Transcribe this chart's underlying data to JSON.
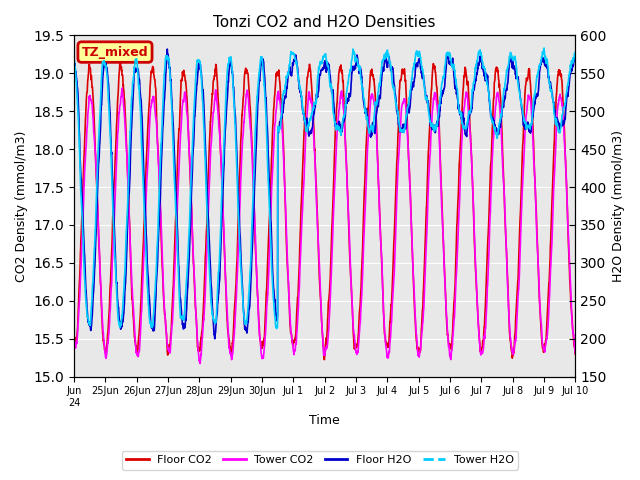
{
  "title": "Tonzi CO2 and H2O Densities",
  "xlabel": "Time",
  "ylabel_left": "CO2 Density (mmol/m3)",
  "ylabel_right": "H2O Density (mmol/m3)",
  "ylim_left": [
    15.0,
    19.5
  ],
  "ylim_right": [
    150,
    600
  ],
  "yticks_left": [
    15.0,
    15.5,
    16.0,
    16.5,
    17.0,
    17.5,
    18.0,
    18.5,
    19.0,
    19.5
  ],
  "yticks_right": [
    150,
    200,
    250,
    300,
    350,
    400,
    450,
    500,
    550,
    600
  ],
  "xtick_labels": [
    "Jun\n24",
    "25Jun",
    "26Jun",
    "27Jun",
    "28Jun",
    "29Jun",
    "30Jun",
    "Jul 1",
    "Jul 2",
    "Jul 3",
    "Jul 4",
    "Jul 5",
    "Jul 6",
    "Jul 7",
    "Jul 8",
    "Jul 9",
    "Jul 10"
  ],
  "annotation_text": "TZ_mixed",
  "annotation_color": "#cc0000",
  "annotation_bg": "#ffff99",
  "floor_co2_color": "#dd0000",
  "tower_co2_color": "#ff00ff",
  "floor_h2o_color": "#0000cc",
  "tower_h2o_color": "#00ccff",
  "legend_labels": [
    "Floor CO2",
    "Tower CO2",
    "Floor H2O",
    "Tower H2O"
  ],
  "n_days": 16,
  "seed": 42,
  "bg_color": "#e8e8e8",
  "grid_color": "white"
}
